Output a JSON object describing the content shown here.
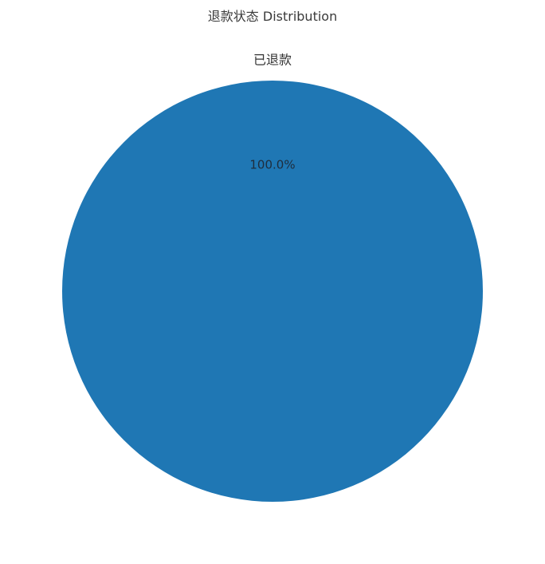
{
  "chart_data": {
    "type": "pie",
    "title": "退款状态 Distribution",
    "categories": [
      "已退款"
    ],
    "values": [
      100.0
    ],
    "percent_labels": [
      "100.0%"
    ],
    "colors": [
      "#1f77b4"
    ],
    "legend": "none"
  }
}
